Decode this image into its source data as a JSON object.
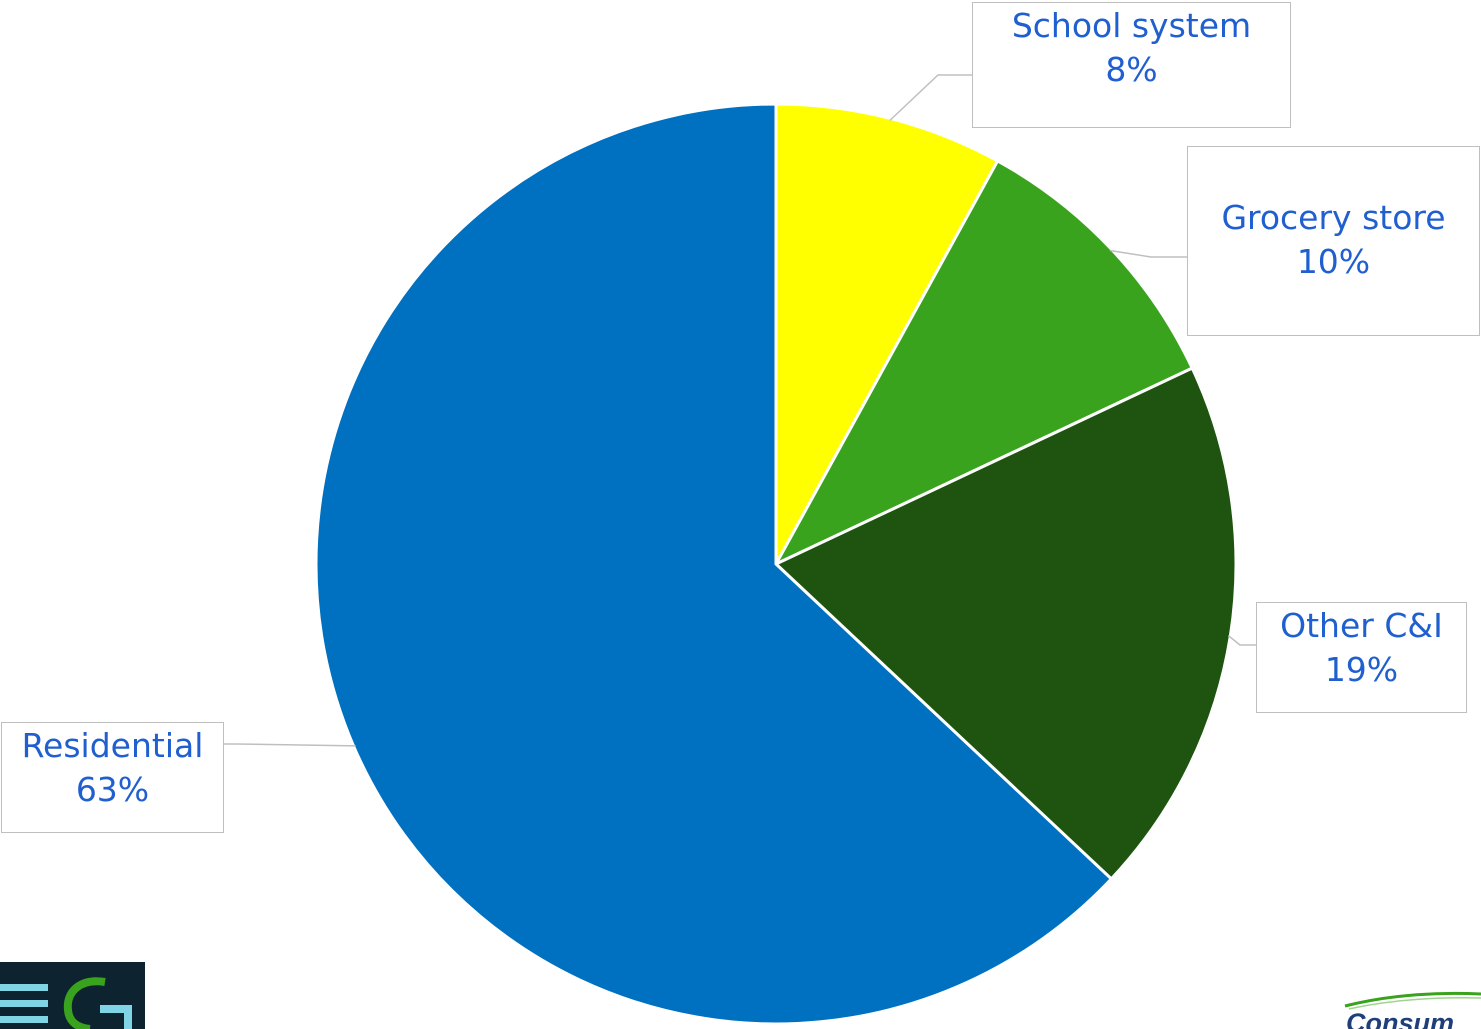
{
  "chart_data": {
    "type": "pie",
    "start_angle_deg": 0,
    "direction": "clockwise",
    "slices": [
      {
        "label": "School system",
        "value": 8,
        "display": "8%",
        "color": "#ffff00"
      },
      {
        "label": "Grocery store",
        "value": 10,
        "display": "10%",
        "color": "#3aa31e"
      },
      {
        "label": "Other C&I",
        "value": 19,
        "display": "19%",
        "color": "#1e540f"
      },
      {
        "label": "Residential",
        "value": 63,
        "display": "63%",
        "color": "#0070c0"
      }
    ],
    "slice_border_color": "#ffffff",
    "label_color": "#1f5fcf",
    "leader_line_color": "#bfbfbf"
  },
  "logos": {
    "left": {
      "text": "EG",
      "color_e": "#7fd4e6",
      "color_g": "#3aa31e"
    },
    "right": {
      "text": "Consum",
      "color": "#1f3f7a",
      "swoosh_color": "#3aa31e"
    }
  }
}
